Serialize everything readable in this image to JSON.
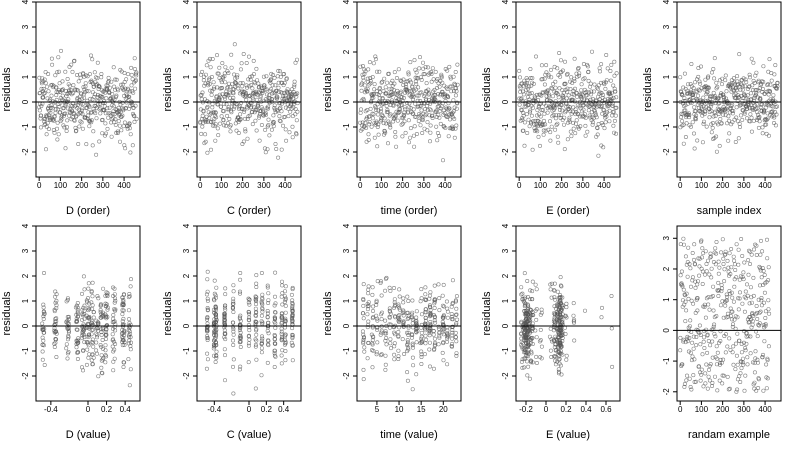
{
  "colors": {
    "point": "#555555",
    "axis": "#000000",
    "refline": "#000000",
    "background": "#ffffff"
  },
  "chart_data": [
    {
      "type": "scatter",
      "panel": "r1c1",
      "xlabel": "D (order)",
      "ylabel": "residuals",
      "xlim": [
        -15,
        475
      ],
      "ylim": [
        -3,
        4
      ],
      "xticks": [
        0,
        100,
        200,
        300,
        400
      ],
      "yticks": [
        -2,
        -1,
        0,
        1,
        2,
        3,
        4
      ],
      "reference_line": 0,
      "generator": "order",
      "n": 460,
      "sd": 0.75,
      "seed": 11
    },
    {
      "type": "scatter",
      "panel": "r1c2",
      "xlabel": "C (order)",
      "ylabel": "residuals",
      "xlim": [
        -15,
        475
      ],
      "ylim": [
        -3,
        4
      ],
      "xticks": [
        0,
        100,
        200,
        300,
        400
      ],
      "yticks": [
        -2,
        -1,
        0,
        1,
        2,
        3,
        4
      ],
      "reference_line": 0,
      "generator": "order",
      "n": 460,
      "sd": 0.75,
      "seed": 23
    },
    {
      "type": "scatter",
      "panel": "r1c3",
      "xlabel": "time (order)",
      "ylabel": "residuals",
      "xlim": [
        -15,
        475
      ],
      "ylim": [
        -3,
        4
      ],
      "xticks": [
        0,
        100,
        200,
        300,
        400
      ],
      "yticks": [
        -2,
        -1,
        0,
        1,
        2,
        3,
        4
      ],
      "reference_line": 0,
      "generator": "order",
      "n": 460,
      "sd": 0.75,
      "seed": 37
    },
    {
      "type": "scatter",
      "panel": "r1c4",
      "xlabel": "E (order)",
      "ylabel": "residuals",
      "xlim": [
        -15,
        475
      ],
      "ylim": [
        -3,
        4
      ],
      "xticks": [
        0,
        100,
        200,
        300,
        400
      ],
      "yticks": [
        -2,
        -1,
        0,
        1,
        2,
        3,
        4
      ],
      "reference_line": 0,
      "generator": "order",
      "n": 460,
      "sd": 0.75,
      "seed": 41
    },
    {
      "type": "scatter",
      "panel": "r1c5",
      "xlabel": "sample index",
      "ylabel": "residuals",
      "xlim": [
        -15,
        475
      ],
      "ylim": [
        -3,
        4
      ],
      "xticks": [
        0,
        100,
        200,
        300,
        400
      ],
      "yticks": [
        -2,
        -1,
        0,
        1,
        2,
        3,
        4
      ],
      "reference_line": 0,
      "generator": "order",
      "n": 460,
      "sd": 0.7,
      "seed": 53
    },
    {
      "type": "scatter",
      "panel": "r2c1",
      "xlabel": "D (value)",
      "ylabel": "residuals",
      "xlim": [
        -0.56,
        0.56
      ],
      "ylim": [
        -3,
        4
      ],
      "xticks": [
        -0.4,
        0,
        0.2,
        0.4
      ],
      "yticks": [
        -2,
        -1,
        0,
        1,
        2,
        3,
        4
      ],
      "reference_line": 0,
      "generator": "clusters",
      "clusters": [
        -0.48,
        -0.35,
        -0.22,
        -0.12,
        -0.05,
        0,
        0.05,
        0.1,
        0.15,
        0.2,
        0.28,
        0.38,
        0.45
      ],
      "jitter": 0.015,
      "n": 380,
      "sd": 0.8,
      "seed": 61
    },
    {
      "type": "scatter",
      "panel": "r2c2",
      "xlabel": "C (value)",
      "ylabel": "residuals",
      "xlim": [
        -0.6,
        0.6
      ],
      "ylim": [
        -3,
        4
      ],
      "xticks": [
        -0.4,
        0,
        0.2,
        0.4
      ],
      "yticks": [
        -2,
        -1,
        0,
        1,
        2,
        3,
        4
      ],
      "reference_line": 0,
      "generator": "clusters",
      "clusters": [
        -0.48,
        -0.4,
        -0.38,
        -0.28,
        -0.18,
        -0.1,
        0,
        0.08,
        0.15,
        0.22,
        0.3,
        0.38,
        0.42,
        0.5
      ],
      "jitter": 0.006,
      "n": 380,
      "sd": 0.8,
      "seed": 67
    },
    {
      "type": "scatter",
      "panel": "r2c3",
      "xlabel": "time (value)",
      "ylabel": "residuals",
      "xlim": [
        0.5,
        24
      ],
      "ylim": [
        -3,
        4
      ],
      "xticks": [
        5,
        10,
        15,
        20
      ],
      "yticks": [
        -2,
        -1,
        0,
        1,
        2,
        3,
        4
      ],
      "reference_line": 0,
      "generator": "clusters",
      "clusters": [
        2,
        3,
        4,
        5,
        6,
        7,
        8,
        9,
        10,
        11,
        12,
        13,
        14,
        15,
        16,
        17,
        18,
        19,
        20,
        21,
        22,
        23
      ],
      "jitter": 0.18,
      "n": 380,
      "sd": 0.8,
      "seed": 71
    },
    {
      "type": "scatter",
      "panel": "r2c4",
      "xlabel": "E (value)",
      "ylabel": "residuals",
      "xlim": [
        -0.3,
        0.74
      ],
      "ylim": [
        -3,
        4
      ],
      "xticks": [
        -0.2,
        0,
        0.2,
        0.4,
        0.6
      ],
      "yticks": [
        -2,
        -1,
        0,
        1,
        2,
        3,
        4
      ],
      "reference_line": 0,
      "generator": "clusters",
      "clusters": [
        -0.24,
        -0.21,
        -0.19,
        -0.17,
        -0.14,
        -0.1,
        -0.05,
        0.05,
        0.09,
        0.12,
        0.14,
        0.16,
        0.2,
        0.28,
        0.4,
        0.55,
        0.65
      ],
      "cluster_weights": [
        3,
        5,
        5,
        4,
        3,
        1,
        1,
        1,
        3,
        5,
        5,
        3,
        1,
        0.6,
        0.3,
        0.2,
        0.2
      ],
      "jitter": 0.012,
      "n": 420,
      "sd": 0.8,
      "seed": 79
    },
    {
      "type": "scatter",
      "panel": "r2c5",
      "xlabel": "randam example",
      "ylabel": "",
      "xlim": [
        -15,
        475
      ],
      "ylim": [
        -2.3,
        3.4
      ],
      "xticks": [
        0,
        100,
        200,
        300,
        400
      ],
      "yticks": [
        -2,
        -1,
        0,
        1,
        2,
        3
      ],
      "reference_line": 0,
      "generator": "uniform",
      "n": 420,
      "low": -2,
      "high": 3,
      "seed": 89
    }
  ]
}
